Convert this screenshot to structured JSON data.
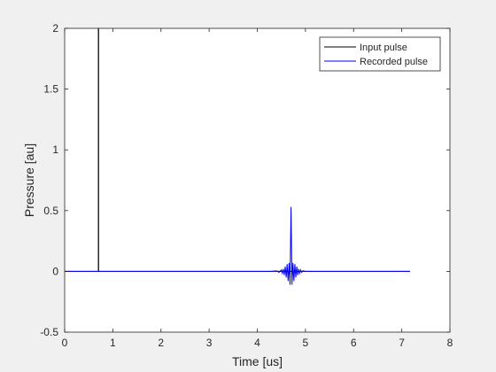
{
  "chart_data": {
    "type": "line",
    "xlabel": "Time [us]",
    "ylabel": "Pressure [au]",
    "xlim": [
      0,
      8
    ],
    "ylim": [
      -0.5,
      2
    ],
    "xticks": [
      "0",
      "1",
      "2",
      "3",
      "4",
      "5",
      "6",
      "7",
      "8"
    ],
    "yticks": [
      "-0.5",
      "0",
      "0.5",
      "1",
      "1.5",
      "2"
    ],
    "grid": false,
    "legend_position": "top-right",
    "series": [
      {
        "name": "Input pulse",
        "color": "#000000",
        "x": [
          0,
          0.7,
          0.7,
          0.705,
          0.705,
          7.17
        ],
        "y": [
          0,
          0,
          2.0,
          2.0,
          0,
          0
        ]
      },
      {
        "name": "Recorded pulse",
        "color": "#0000ff",
        "x": [
          0,
          4.3,
          4.4,
          4.45,
          4.5,
          4.52,
          4.54,
          4.56,
          4.58,
          4.6,
          4.62,
          4.64,
          4.66,
          4.68,
          4.7,
          4.72,
          4.74,
          4.76,
          4.78,
          4.8,
          4.82,
          4.84,
          4.86,
          4.88,
          4.9,
          4.92,
          4.95,
          5.0,
          5.1,
          7.17
        ],
        "y": [
          0,
          0,
          0.005,
          -0.008,
          0.012,
          -0.015,
          0.02,
          -0.03,
          0.04,
          -0.05,
          0.06,
          -0.08,
          0.07,
          -0.11,
          0.53,
          -0.11,
          0.07,
          -0.08,
          0.06,
          -0.05,
          0.04,
          -0.03,
          0.02,
          -0.015,
          0.012,
          -0.008,
          0.005,
          0,
          0,
          0
        ]
      }
    ]
  }
}
